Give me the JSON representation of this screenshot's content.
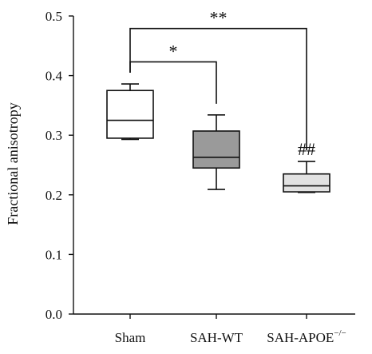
{
  "chart_data": {
    "type": "box",
    "ylabel": "Fractional anisotropy",
    "ylim": [
      0,
      0.5
    ],
    "yticks": [
      "0.0",
      "0.1",
      "0.2",
      "0.3",
      "0.4",
      "0.5"
    ],
    "categories": [
      {
        "label": "Sham",
        "sup": "",
        "min": 0.293,
        "q1": 0.295,
        "median": 0.325,
        "q3": 0.375,
        "max": 0.386,
        "fill": "#ffffff"
      },
      {
        "label": "SAH-WT",
        "sup": "",
        "min": 0.209,
        "q1": 0.245,
        "median": 0.263,
        "q3": 0.307,
        "max": 0.334,
        "fill": "#9a9a9a"
      },
      {
        "label": "SAH-APOE",
        "sup": "−/−",
        "min": 0.204,
        "q1": 0.205,
        "median": 0.215,
        "q3": 0.235,
        "max": 0.256,
        "fill": "#e2e2e2"
      }
    ],
    "annotations": [
      {
        "text": "*",
        "from": 0,
        "to": 1,
        "y": 0.423
      },
      {
        "text": "**",
        "from": 0,
        "to": 2,
        "y": 0.479
      }
    ],
    "marker": {
      "text": "##",
      "category": 2
    }
  }
}
